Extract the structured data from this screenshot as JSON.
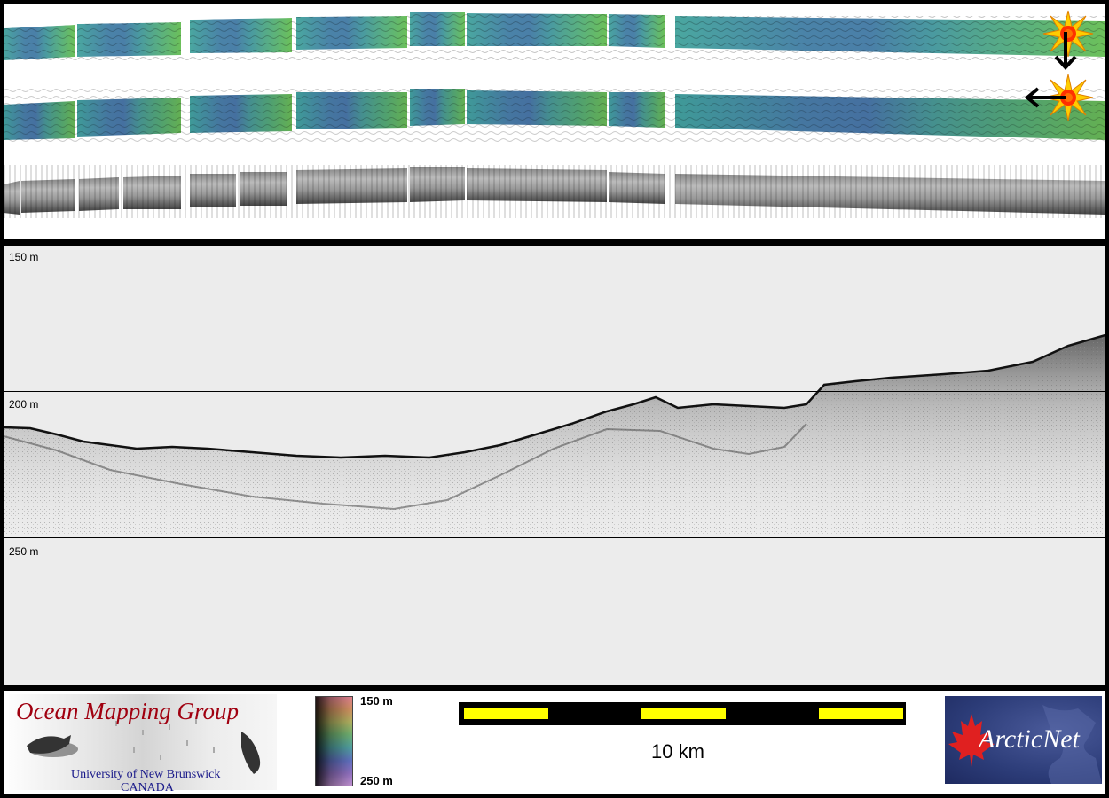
{
  "profile": {
    "depth_labels": [
      "150 m",
      "200 m",
      "250 m"
    ]
  },
  "footer": {
    "omg_logo": {
      "title": "Ocean Mapping Group",
      "university": "University of New Brunswick",
      "country": "CANADA"
    },
    "colorbar": {
      "top_label": "150 m",
      "bottom_label": "250 m"
    },
    "scale_bar": {
      "label": "10 km",
      "fill_color": "#ffff00"
    },
    "arcticnet_logo": {
      "text": "ArcticNet"
    }
  },
  "icons": {
    "sun_markers": [
      "sun-marker-icon",
      "sun-marker-icon"
    ],
    "arrows": [
      "arrow-down-icon",
      "arrow-left-icon"
    ]
  },
  "colors": {
    "frame": "#000000",
    "profile_background": "#ececec",
    "omg_title": "#a00010",
    "omg_subtitle": "#1a1a8a",
    "arcticnet_background": "#2c3c78"
  }
}
